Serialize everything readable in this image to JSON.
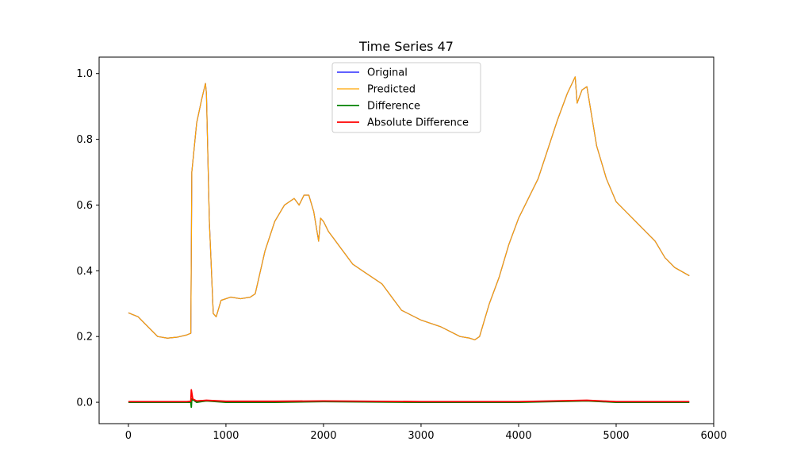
{
  "chart_data": {
    "type": "line",
    "title": "Time Series 47",
    "xlabel": "",
    "ylabel": "",
    "xlim": [
      -300,
      6000
    ],
    "ylim": [
      -0.065,
      1.05
    ],
    "xticks": [
      0,
      1000,
      2000,
      3000,
      4000,
      5000,
      6000
    ],
    "xtick_labels": [
      "0",
      "1000",
      "2000",
      "3000",
      "4000",
      "5000",
      "6000"
    ],
    "yticks": [
      0.0,
      0.2,
      0.4,
      0.6,
      0.8,
      1.0
    ],
    "ytick_labels": [
      "0.0",
      "0.2",
      "0.4",
      "0.6",
      "0.8",
      "1.0"
    ],
    "grid": false,
    "legend_position": "top-center",
    "series": [
      {
        "name": "Original",
        "color": "#0000ff",
        "x": [
          0,
          100,
          200,
          300,
          400,
          500,
          600,
          640,
          650,
          700,
          750,
          790,
          800,
          830,
          870,
          900,
          950,
          1050,
          1150,
          1250,
          1300,
          1400,
          1500,
          1600,
          1700,
          1750,
          1800,
          1850,
          1900,
          1950,
          1970,
          2000,
          2050,
          2100,
          2200,
          2300,
          2400,
          2500,
          2600,
          2700,
          2800,
          3000,
          3200,
          3400,
          3500,
          3550,
          3600,
          3650,
          3700,
          3800,
          3900,
          4000,
          4100,
          4200,
          4300,
          4400,
          4500,
          4580,
          4600,
          4650,
          4700,
          4800,
          4900,
          5000,
          5100,
          5200,
          5300,
          5400,
          5500,
          5600,
          5750
        ],
        "y": [
          0.272,
          0.26,
          0.23,
          0.2,
          0.195,
          0.198,
          0.205,
          0.21,
          0.7,
          0.85,
          0.92,
          0.97,
          0.94,
          0.55,
          0.27,
          0.26,
          0.31,
          0.32,
          0.315,
          0.32,
          0.33,
          0.46,
          0.55,
          0.6,
          0.62,
          0.6,
          0.63,
          0.63,
          0.58,
          0.49,
          0.56,
          0.55,
          0.52,
          0.5,
          0.46,
          0.42,
          0.4,
          0.38,
          0.36,
          0.32,
          0.28,
          0.25,
          0.23,
          0.2,
          0.195,
          0.19,
          0.2,
          0.25,
          0.3,
          0.38,
          0.48,
          0.56,
          0.62,
          0.68,
          0.77,
          0.86,
          0.94,
          0.99,
          0.91,
          0.95,
          0.96,
          0.78,
          0.68,
          0.61,
          0.58,
          0.55,
          0.52,
          0.49,
          0.44,
          0.41,
          0.385
        ]
      },
      {
        "name": "Predicted",
        "color": "#ffa500",
        "x": [
          0,
          100,
          200,
          300,
          400,
          500,
          600,
          640,
          650,
          700,
          750,
          790,
          800,
          830,
          870,
          900,
          950,
          1050,
          1150,
          1250,
          1300,
          1400,
          1500,
          1600,
          1700,
          1750,
          1800,
          1850,
          1900,
          1950,
          1970,
          2000,
          2050,
          2100,
          2200,
          2300,
          2400,
          2500,
          2600,
          2700,
          2800,
          3000,
          3200,
          3400,
          3500,
          3550,
          3600,
          3650,
          3700,
          3800,
          3900,
          4000,
          4100,
          4200,
          4300,
          4400,
          4500,
          4580,
          4600,
          4650,
          4700,
          4800,
          4900,
          5000,
          5100,
          5200,
          5300,
          5400,
          5500,
          5600,
          5750
        ],
        "y": [
          0.272,
          0.26,
          0.23,
          0.2,
          0.195,
          0.198,
          0.205,
          0.21,
          0.7,
          0.85,
          0.92,
          0.97,
          0.94,
          0.55,
          0.27,
          0.26,
          0.31,
          0.32,
          0.315,
          0.32,
          0.33,
          0.46,
          0.55,
          0.6,
          0.62,
          0.6,
          0.63,
          0.63,
          0.58,
          0.49,
          0.56,
          0.55,
          0.52,
          0.5,
          0.46,
          0.42,
          0.4,
          0.38,
          0.36,
          0.32,
          0.28,
          0.25,
          0.23,
          0.2,
          0.195,
          0.19,
          0.2,
          0.25,
          0.3,
          0.38,
          0.48,
          0.56,
          0.62,
          0.68,
          0.77,
          0.86,
          0.94,
          0.99,
          0.91,
          0.95,
          0.96,
          0.78,
          0.68,
          0.61,
          0.58,
          0.55,
          0.52,
          0.49,
          0.44,
          0.41,
          0.385
        ]
      },
      {
        "name": "Difference",
        "color": "#008000",
        "x": [
          0,
          600,
          640,
          645,
          650,
          700,
          800,
          1000,
          1500,
          2000,
          3000,
          4000,
          4500,
          4700,
          5000,
          5750
        ],
        "y": [
          0.0,
          0.0,
          0.0,
          -0.015,
          0.01,
          0.0,
          0.004,
          0.0,
          0.0,
          0.002,
          0.0,
          0.0,
          0.003,
          0.004,
          0.0,
          0.0
        ]
      },
      {
        "name": "Absolute Difference",
        "color": "#ff0000",
        "x": [
          0,
          600,
          640,
          645,
          660,
          700,
          800,
          1000,
          1500,
          2000,
          3000,
          4000,
          4500,
          4700,
          5000,
          5750
        ],
        "y": [
          0.002,
          0.002,
          0.003,
          0.038,
          0.01,
          0.004,
          0.006,
          0.003,
          0.003,
          0.004,
          0.002,
          0.002,
          0.005,
          0.006,
          0.002,
          0.002
        ]
      }
    ]
  }
}
